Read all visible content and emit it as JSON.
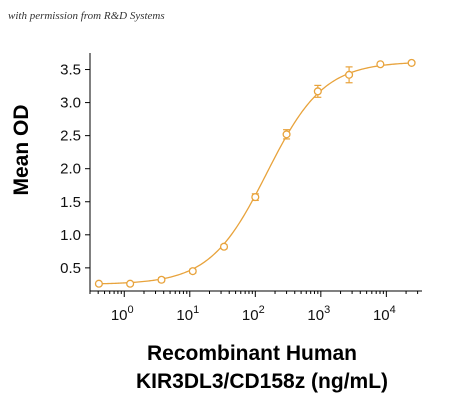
{
  "watermark": "with permission from R&D Systems",
  "chart_data": {
    "type": "scatter",
    "title": "",
    "xlabel_line1": "Recombinant Human",
    "xlabel_line2": "KIR3DL3/CD158z (ng/mL)",
    "ylabel": "Mean OD",
    "x_scale": "log",
    "xlim": [
      0.3,
      35000
    ],
    "ylim": [
      0.15,
      3.75
    ],
    "x_ticks": [
      1,
      10,
      100,
      1000,
      10000
    ],
    "x_tick_labels": [
      {
        "base": "10",
        "exp": "0"
      },
      {
        "base": "10",
        "exp": "1"
      },
      {
        "base": "10",
        "exp": "2"
      },
      {
        "base": "10",
        "exp": "3"
      },
      {
        "base": "10",
        "exp": "4"
      }
    ],
    "y_ticks": [
      0.5,
      1.0,
      1.5,
      2.0,
      2.5,
      3.0,
      3.5
    ],
    "y_tick_labels": [
      "0.5",
      "1.0",
      "1.5",
      "2.0",
      "2.5",
      "3.0",
      "3.5"
    ],
    "grid": false,
    "color": "#E8A33C",
    "series": [
      {
        "x": [
          0.41,
          1.23,
          3.7,
          11.1,
          33.3,
          100,
          300,
          900,
          2700,
          8100,
          24300
        ],
        "y": [
          0.26,
          0.26,
          0.32,
          0.45,
          0.82,
          1.57,
          2.52,
          3.17,
          3.42,
          3.58,
          3.6
        ],
        "err": [
          0.02,
          0.02,
          0.03,
          0.03,
          0.03,
          0.05,
          0.07,
          0.09,
          0.12,
          0.02,
          0.02
        ]
      }
    ],
    "fit": {
      "bottom": 0.25,
      "top": 3.62,
      "ec50": 150,
      "hill": 1.0
    }
  }
}
